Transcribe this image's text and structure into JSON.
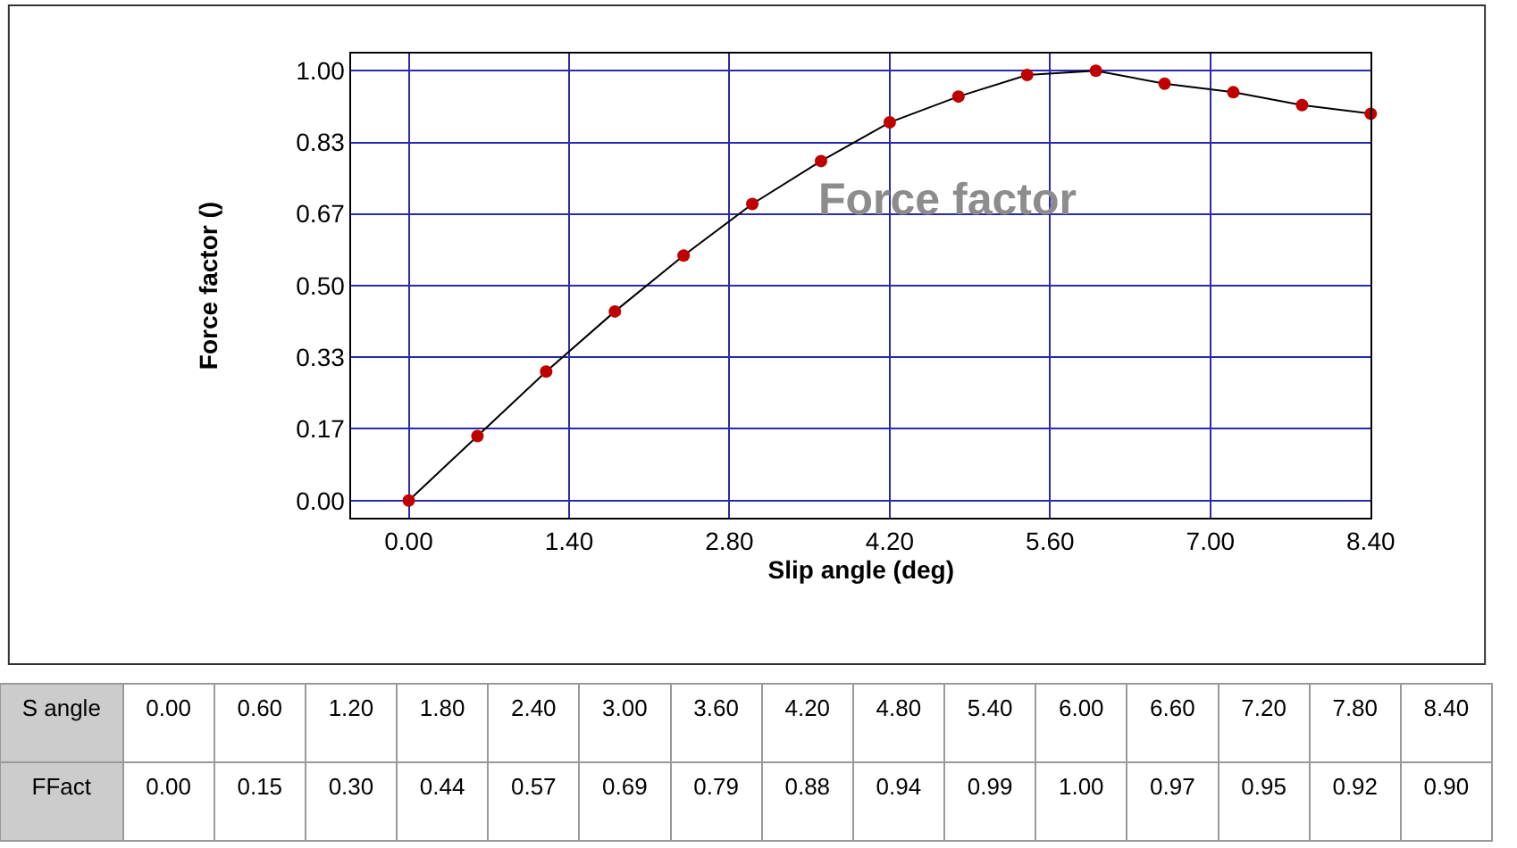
{
  "chart_data": {
    "type": "line",
    "xlabel": "Slip angle (deg)",
    "ylabel": "Force factor ()",
    "annotations": [
      "Force factor",
      "S angle",
      "FFact",
      "0.00",
      "0.60",
      "1.20",
      "1.80",
      "2.40",
      "3.00",
      "3.60",
      "4.20",
      "4.80",
      "5.40",
      "6.00",
      "6.60",
      "7.20",
      "7.80",
      "8.40",
      "0.00",
      "0.15",
      "0.30",
      "0.44",
      "0.57",
      "0.69",
      "0.79",
      "0.88",
      "0.94",
      "0.99",
      "1.00",
      "0.97",
      "0.95",
      "0.92",
      "0.90"
    ],
    "x": [
      0.0,
      0.6,
      1.2,
      1.8,
      2.4,
      3.0,
      3.6,
      4.2,
      4.8,
      5.4,
      6.0,
      6.6,
      7.2,
      7.8,
      8.4
    ],
    "series": [
      {
        "color": "#c00000",
        "values": [
          0.0,
          0.15,
          0.3,
          0.44,
          0.57,
          0.69,
          0.79,
          0.88,
          0.94,
          0.99,
          1.0,
          0.97,
          0.95,
          0.92,
          0.9
        ]
      }
    ],
    "xlim": [
      -0.5,
      8.4
    ],
    "ylim": [
      -0.04,
      1.04
    ],
    "xticks": [
      {
        "value": 0,
        "label": "0.00"
      },
      {
        "value": 1.4,
        "label": "1.40"
      },
      {
        "value": 2.8,
        "label": "2.80"
      },
      {
        "value": 4.2,
        "label": "4.20"
      },
      {
        "value": 5.6,
        "label": "5.60"
      },
      {
        "value": 7.0,
        "label": "7.00"
      },
      {
        "value": 8.4,
        "label": "8.40"
      }
    ],
    "yticks": [
      {
        "value": 0,
        "label": "0.00"
      },
      {
        "value": 0.167,
        "label": "0.17"
      },
      {
        "value": 0.333,
        "label": "0.33"
      },
      {
        "value": 0.5,
        "label": "0.50"
      },
      {
        "value": 0.667,
        "label": "0.67"
      },
      {
        "value": 0.833,
        "label": "0.83"
      },
      {
        "value": 1.0,
        "label": "1.00"
      }
    ],
    "grid": true,
    "marker": "circle",
    "line_style": "solid"
  }
}
